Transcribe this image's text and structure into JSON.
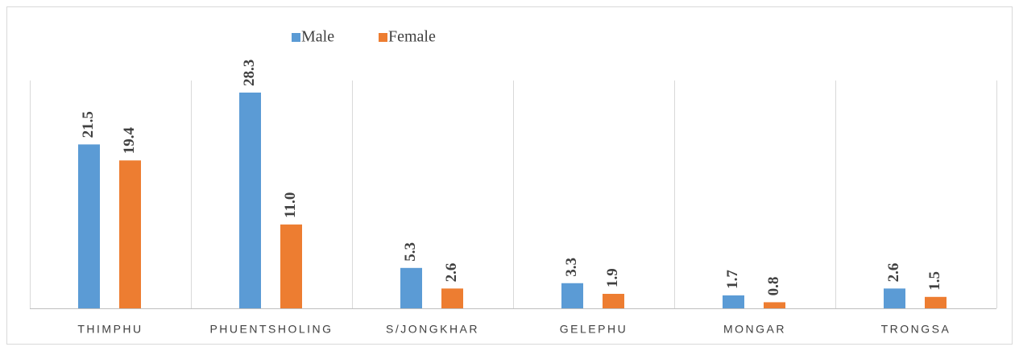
{
  "chart_data": {
    "type": "bar",
    "categories": [
      "THIMPHU",
      "PHUENTSHOLING",
      "S/JONGKHAR",
      "GELEPHU",
      "MONGAR",
      "TRONGSA"
    ],
    "series": [
      {
        "name": "Male",
        "color": "#5b9bd5",
        "values": [
          21.5,
          28.3,
          5.3,
          3.3,
          1.7,
          2.6
        ],
        "value_labels": [
          "21.5",
          "28.3",
          "5.3",
          "3.3",
          "1.7",
          "2.6"
        ]
      },
      {
        "name": "Female",
        "color": "#ed7d31",
        "values": [
          19.4,
          11.0,
          2.6,
          1.9,
          0.8,
          1.5
        ],
        "value_labels": [
          "19.4",
          "11.0",
          "2.6",
          "1.9",
          "0.8",
          "1.5"
        ]
      }
    ],
    "legend": "top"
  }
}
